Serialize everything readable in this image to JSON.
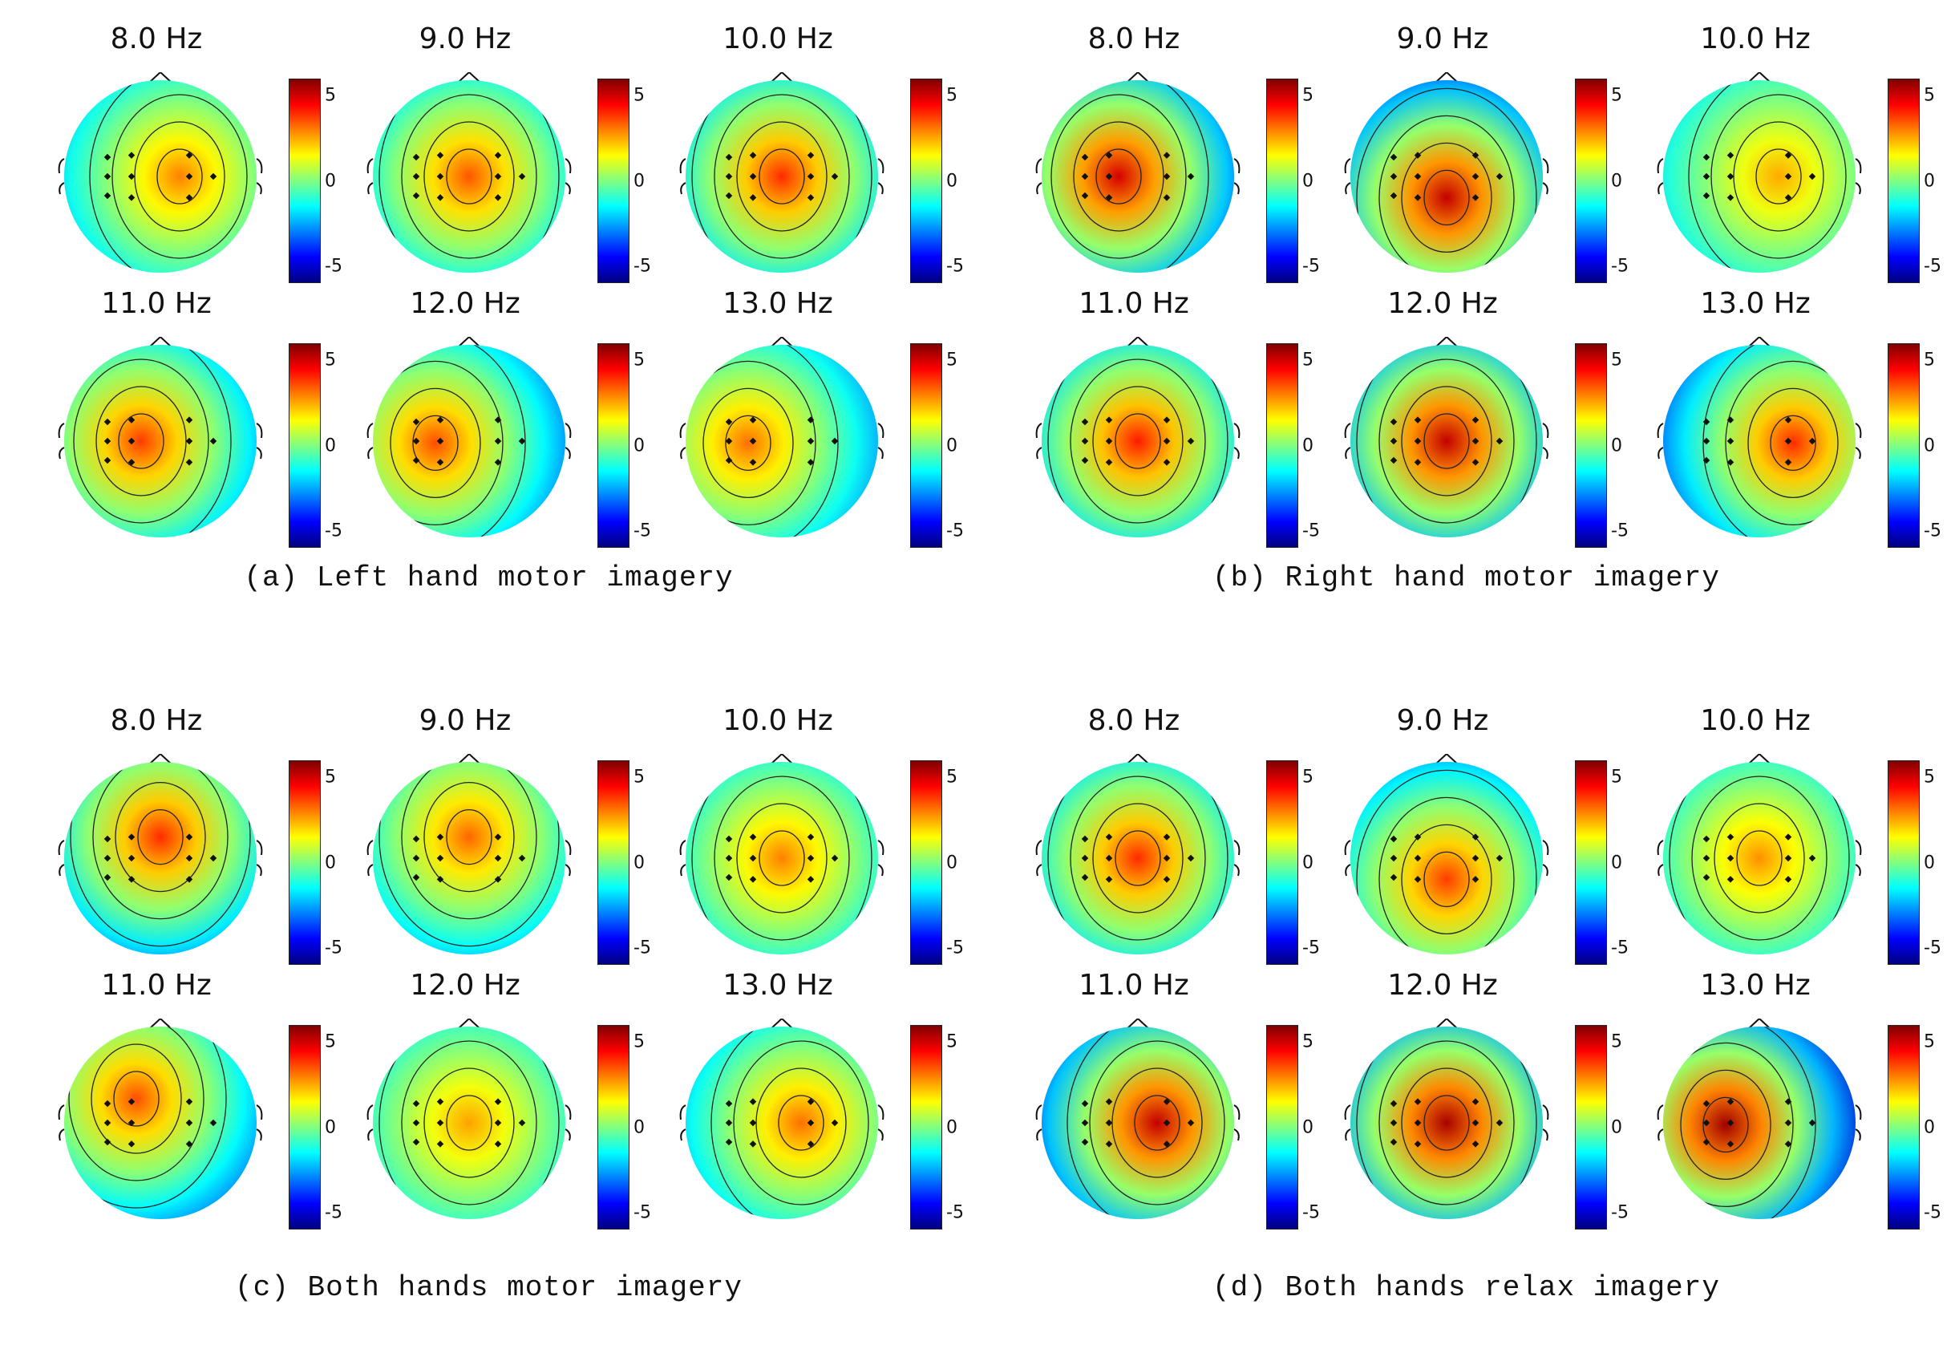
{
  "chart_data": [
    {
      "type": "heatmap",
      "title": "(a) Left hand motor imagery",
      "colorbar": {
        "ticks": [
          5,
          0,
          -5
        ],
        "range": [
          -6,
          6
        ],
        "colormap": "jet"
      },
      "maps": [
        {
          "label": "8.0 Hz",
          "peak": 3.0,
          "peak_location": "center-right"
        },
        {
          "label": "9.0 Hz",
          "peak": 3.5,
          "peak_location": "center"
        },
        {
          "label": "10.0 Hz",
          "peak": 4.0,
          "peak_location": "center"
        },
        {
          "label": "11.0 Hz",
          "peak": 3.8,
          "peak_location": "center-left"
        },
        {
          "label": "12.0 Hz",
          "peak": 3.6,
          "peak_location": "left"
        },
        {
          "label": "13.0 Hz",
          "peak": 3.2,
          "peak_location": "left"
        }
      ]
    },
    {
      "type": "heatmap",
      "title": "(b) Right hand motor imagery",
      "colorbar": {
        "ticks": [
          5,
          0,
          -5
        ],
        "range": [
          -6,
          6
        ],
        "colormap": "jet"
      },
      "maps": [
        {
          "label": "8.0 Hz",
          "peak": 5.0,
          "peak_location": "center-left"
        },
        {
          "label": "9.0 Hz",
          "peak": 5.2,
          "peak_location": "lower-center"
        },
        {
          "label": "10.0 Hz",
          "peak": 2.5,
          "peak_location": "center-right"
        },
        {
          "label": "11.0 Hz",
          "peak": 4.2,
          "peak_location": "center"
        },
        {
          "label": "12.0 Hz",
          "peak": 5.2,
          "peak_location": "center"
        },
        {
          "label": "13.0 Hz",
          "peak": 4.0,
          "peak_location": "right"
        }
      ]
    },
    {
      "type": "heatmap",
      "title": "(c) Both hands motor imagery",
      "colorbar": {
        "ticks": [
          5,
          0,
          -5
        ],
        "range": [
          -6,
          6
        ],
        "colormap": "jet"
      },
      "maps": [
        {
          "label": "8.0 Hz",
          "peak": 4.0,
          "peak_location": "upper-center"
        },
        {
          "label": "9.0 Hz",
          "peak": 3.3,
          "peak_location": "upper-center"
        },
        {
          "label": "10.0 Hz",
          "peak": 3.0,
          "peak_location": "center"
        },
        {
          "label": "11.0 Hz",
          "peak": 3.6,
          "peak_location": "upper-left"
        },
        {
          "label": "12.0 Hz",
          "peak": 2.6,
          "peak_location": "center"
        },
        {
          "label": "13.0 Hz",
          "peak": 3.2,
          "peak_location": "center-right"
        }
      ]
    },
    {
      "type": "heatmap",
      "title": "(d) Both hands relax imagery",
      "colorbar": {
        "ticks": [
          5,
          0,
          -5
        ],
        "range": [
          -6,
          6
        ],
        "colormap": "jet"
      },
      "maps": [
        {
          "label": "8.0 Hz",
          "peak": 4.0,
          "peak_location": "center"
        },
        {
          "label": "9.0 Hz",
          "peak": 3.8,
          "peak_location": "lower-center"
        },
        {
          "label": "10.0 Hz",
          "peak": 2.8,
          "peak_location": "center"
        },
        {
          "label": "11.0 Hz",
          "peak": 5.2,
          "peak_location": "center-right"
        },
        {
          "label": "12.0 Hz",
          "peak": 5.5,
          "peak_location": "center"
        },
        {
          "label": "13.0 Hz",
          "peak": 5.6,
          "peak_location": "left"
        }
      ]
    }
  ]
}
